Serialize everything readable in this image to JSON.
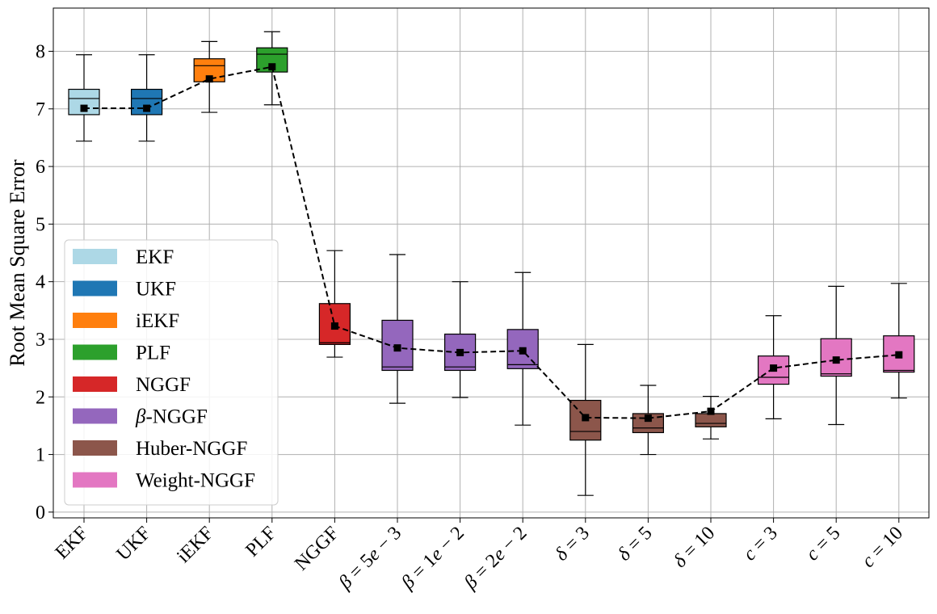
{
  "chart_data": {
    "type": "box",
    "ylabel": "Root Mean Square Error",
    "xlabel": "",
    "title": "",
    "ylim": [
      -0.1,
      8.75
    ],
    "yticks": [
      0,
      1,
      2,
      3,
      4,
      5,
      6,
      7,
      8
    ],
    "grid": true,
    "legend_position": "center-left",
    "categories": [
      {
        "parts": [
          {
            "t": "EKF",
            "i": false
          }
        ]
      },
      {
        "parts": [
          {
            "t": "UKF",
            "i": false
          }
        ]
      },
      {
        "parts": [
          {
            "t": "iEKF",
            "i": false
          }
        ]
      },
      {
        "parts": [
          {
            "t": "PLF",
            "i": false
          }
        ]
      },
      {
        "parts": [
          {
            "t": "NGGF",
            "i": false
          }
        ]
      },
      {
        "parts": [
          {
            "t": "β",
            "i": true
          },
          {
            "t": " = 5",
            "i": false
          },
          {
            "t": "e",
            "i": true
          },
          {
            "t": " − 3",
            "i": false
          }
        ]
      },
      {
        "parts": [
          {
            "t": "β",
            "i": true
          },
          {
            "t": " = 1",
            "i": false
          },
          {
            "t": "e",
            "i": true
          },
          {
            "t": " − 2",
            "i": false
          }
        ]
      },
      {
        "parts": [
          {
            "t": "β",
            "i": true
          },
          {
            "t": " = 2",
            "i": false
          },
          {
            "t": "e",
            "i": true
          },
          {
            "t": " − 2",
            "i": false
          }
        ]
      },
      {
        "parts": [
          {
            "t": "δ",
            "i": true
          },
          {
            "t": " = 3",
            "i": false
          }
        ]
      },
      {
        "parts": [
          {
            "t": "δ",
            "i": true
          },
          {
            "t": " = 5",
            "i": false
          }
        ]
      },
      {
        "parts": [
          {
            "t": "δ",
            "i": true
          },
          {
            "t": " = 10",
            "i": false
          }
        ]
      },
      {
        "parts": [
          {
            "t": "c",
            "i": true
          },
          {
            "t": " = 3",
            "i": false
          }
        ]
      },
      {
        "parts": [
          {
            "t": "c",
            "i": true
          },
          {
            "t": " = 5",
            "i": false
          }
        ]
      },
      {
        "parts": [
          {
            "t": "c",
            "i": true
          },
          {
            "t": " = 10",
            "i": false
          }
        ]
      }
    ],
    "boxes": [
      {
        "whislo": 6.44,
        "q1": 6.9,
        "med": 7.18,
        "q3": 7.34,
        "whishi": 7.94,
        "color": "#add8e6"
      },
      {
        "whislo": 6.44,
        "q1": 6.9,
        "med": 7.18,
        "q3": 7.34,
        "whishi": 7.94,
        "color": "#1f77b4"
      },
      {
        "whislo": 6.94,
        "q1": 7.47,
        "med": 7.75,
        "q3": 7.87,
        "whishi": 8.17,
        "color": "#ff7f0e"
      },
      {
        "whislo": 7.07,
        "q1": 7.64,
        "med": 7.95,
        "q3": 8.06,
        "whishi": 8.34,
        "color": "#2ca02c"
      },
      {
        "whislo": 2.69,
        "q1": 2.91,
        "med": 2.94,
        "q3": 3.62,
        "whishi": 4.54,
        "color": "#d62728"
      },
      {
        "whislo": 1.89,
        "q1": 2.46,
        "med": 2.52,
        "q3": 3.33,
        "whishi": 4.47,
        "color": "#9467bd"
      },
      {
        "whislo": 1.99,
        "q1": 2.46,
        "med": 2.52,
        "q3": 3.09,
        "whishi": 4.0,
        "color": "#9467bd"
      },
      {
        "whislo": 1.51,
        "q1": 2.49,
        "med": 2.56,
        "q3": 3.17,
        "whishi": 4.16,
        "color": "#9467bd"
      },
      {
        "whislo": 0.29,
        "q1": 1.25,
        "med": 1.4,
        "q3": 1.94,
        "whishi": 2.91,
        "color": "#8c564b"
      },
      {
        "whislo": 1.0,
        "q1": 1.38,
        "med": 1.46,
        "q3": 1.71,
        "whishi": 2.2,
        "color": "#8c564b"
      },
      {
        "whislo": 1.27,
        "q1": 1.48,
        "med": 1.54,
        "q3": 1.71,
        "whishi": 2.01,
        "color": "#8c564b"
      },
      {
        "whislo": 1.62,
        "q1": 2.22,
        "med": 2.34,
        "q3": 2.71,
        "whishi": 3.41,
        "color": "#e377c2"
      },
      {
        "whislo": 1.52,
        "q1": 2.36,
        "med": 2.4,
        "q3": 3.01,
        "whishi": 3.92,
        "color": "#e377c2"
      },
      {
        "whislo": 1.98,
        "q1": 2.43,
        "med": 2.46,
        "q3": 3.06,
        "whishi": 3.97,
        "color": "#e377c2"
      }
    ],
    "means": [
      7.01,
      7.01,
      7.52,
      7.73,
      3.23,
      2.85,
      2.77,
      2.8,
      1.64,
      1.63,
      1.75,
      2.5,
      2.64,
      2.73
    ],
    "legend": [
      {
        "parts": [
          {
            "t": "EKF",
            "i": false
          }
        ],
        "color": "#add8e6"
      },
      {
        "parts": [
          {
            "t": "UKF",
            "i": false
          }
        ],
        "color": "#1f77b4"
      },
      {
        "parts": [
          {
            "t": "iEKF",
            "i": false
          }
        ],
        "color": "#ff7f0e"
      },
      {
        "parts": [
          {
            "t": "PLF",
            "i": false
          }
        ],
        "color": "#2ca02c"
      },
      {
        "parts": [
          {
            "t": "NGGF",
            "i": false
          }
        ],
        "color": "#d62728"
      },
      {
        "parts": [
          {
            "t": "β",
            "i": true
          },
          {
            "t": "-NGGF",
            "i": false
          }
        ],
        "color": "#9467bd"
      },
      {
        "parts": [
          {
            "t": "Huber-NGGF",
            "i": false
          }
        ],
        "color": "#8c564b"
      },
      {
        "parts": [
          {
            "t": "Weight-NGGF",
            "i": false
          }
        ],
        "color": "#e377c2"
      }
    ]
  }
}
